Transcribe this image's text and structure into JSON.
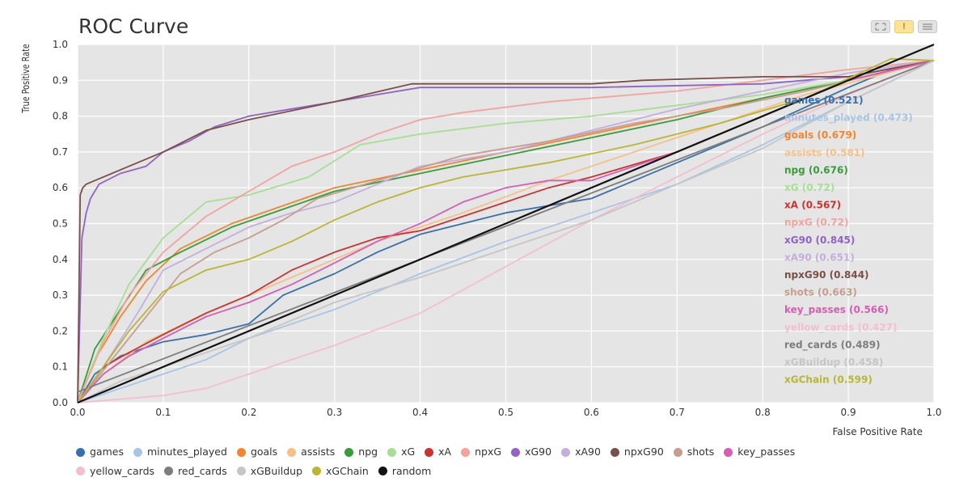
{
  "toolbar": {
    "icons": [
      "expand-icon",
      "warning-icon",
      "menu-icon"
    ]
  },
  "chart_data": {
    "type": "line",
    "title": "ROC Curve",
    "xlabel": "False Positive Rate",
    "ylabel": "True Positive Rate",
    "xlim": [
      0,
      1
    ],
    "ylim": [
      0,
      1
    ],
    "xticks": [
      "0.0",
      "0.1",
      "0.2",
      "0.3",
      "0.4",
      "0.5",
      "0.6",
      "0.7",
      "0.8",
      "0.9",
      "1.0"
    ],
    "yticks": [
      "0.0",
      "0.1",
      "0.2",
      "0.3",
      "0.4",
      "0.5",
      "0.6",
      "0.7",
      "0.8",
      "0.9",
      "1.0"
    ],
    "grid": true,
    "legend_position": "bottom",
    "series": [
      {
        "name": "games",
        "auc_label": "(0.521)",
        "color": "#3a6fae",
        "x": [
          0,
          0.02,
          0.05,
          0.1,
          0.15,
          0.2,
          0.24,
          0.3,
          0.35,
          0.4,
          0.45,
          0.5,
          0.55,
          0.6,
          0.7,
          0.8,
          0.9,
          0.95,
          1
        ],
        "y": [
          0,
          0.08,
          0.13,
          0.17,
          0.19,
          0.22,
          0.3,
          0.36,
          0.42,
          0.47,
          0.5,
          0.53,
          0.55,
          0.57,
          0.67,
          0.77,
          0.88,
          0.93,
          0.955
        ]
      },
      {
        "name": "minutes_played",
        "auc_label": "(0.473)",
        "color": "#a9c4e4",
        "x": [
          0,
          0.05,
          0.1,
          0.15,
          0.2,
          0.3,
          0.4,
          0.5,
          0.6,
          0.7,
          0.8,
          0.9,
          1
        ],
        "y": [
          0,
          0.04,
          0.08,
          0.12,
          0.18,
          0.26,
          0.36,
          0.45,
          0.53,
          0.61,
          0.72,
          0.84,
          0.955
        ]
      },
      {
        "name": "goals",
        "auc_label": "(0.679)",
        "color": "#f0862f",
        "x": [
          0,
          0.02,
          0.05,
          0.08,
          0.12,
          0.18,
          0.3,
          0.4,
          0.5,
          0.6,
          0.7,
          0.8,
          0.9,
          1
        ],
        "y": [
          0,
          0.12,
          0.24,
          0.34,
          0.43,
          0.5,
          0.6,
          0.65,
          0.7,
          0.75,
          0.8,
          0.85,
          0.9,
          0.955
        ]
      },
      {
        "name": "assists",
        "auc_label": "(0.581)",
        "color": "#f5c08a",
        "x": [
          0,
          0.03,
          0.08,
          0.15,
          0.25,
          0.35,
          0.45,
          0.55,
          0.65,
          0.75,
          0.85,
          1
        ],
        "y": [
          0,
          0.08,
          0.17,
          0.25,
          0.35,
          0.45,
          0.53,
          0.62,
          0.7,
          0.78,
          0.86,
          0.955
        ]
      },
      {
        "name": "npg",
        "auc_label": "(0.676)",
        "color": "#3b9b3b",
        "x": [
          0,
          0.02,
          0.05,
          0.08,
          0.12,
          0.18,
          0.3,
          0.4,
          0.5,
          0.6,
          0.7,
          0.8,
          0.9,
          1
        ],
        "y": [
          0,
          0.15,
          0.26,
          0.37,
          0.42,
          0.49,
          0.59,
          0.64,
          0.69,
          0.74,
          0.79,
          0.85,
          0.9,
          0.955
        ]
      },
      {
        "name": "xG",
        "auc_label": "(0.72)",
        "color": "#a6df93",
        "x": [
          0,
          0.03,
          0.06,
          0.1,
          0.15,
          0.2,
          0.27,
          0.33,
          0.4,
          0.5,
          0.6,
          0.7,
          0.8,
          0.9,
          1
        ],
        "y": [
          0,
          0.18,
          0.33,
          0.46,
          0.56,
          0.58,
          0.63,
          0.72,
          0.75,
          0.78,
          0.8,
          0.83,
          0.86,
          0.9,
          0.955
        ]
      },
      {
        "name": "xA",
        "auc_label": "(0.567)",
        "color": "#c8342f",
        "x": [
          0,
          0.03,
          0.06,
          0.1,
          0.15,
          0.2,
          0.25,
          0.3,
          0.35,
          0.4,
          0.45,
          0.5,
          0.55,
          0.6,
          0.7,
          0.8,
          0.9,
          1
        ],
        "y": [
          0,
          0.1,
          0.14,
          0.19,
          0.25,
          0.3,
          0.37,
          0.42,
          0.46,
          0.48,
          0.52,
          0.56,
          0.6,
          0.63,
          0.7,
          0.8,
          0.9,
          0.955
        ]
      },
      {
        "name": "npxG",
        "auc_label": "(0.72)",
        "color": "#f2a39e",
        "x": [
          0,
          0.03,
          0.06,
          0.1,
          0.15,
          0.2,
          0.25,
          0.3,
          0.35,
          0.4,
          0.45,
          0.55,
          0.7,
          0.8,
          0.9,
          1
        ],
        "y": [
          0,
          0.17,
          0.3,
          0.42,
          0.52,
          0.59,
          0.66,
          0.7,
          0.75,
          0.79,
          0.81,
          0.84,
          0.87,
          0.9,
          0.93,
          0.955
        ]
      },
      {
        "name": "xG90",
        "auc_label": "(0.845)",
        "color": "#8f64c2",
        "x": [
          0,
          0.005,
          0.01,
          0.015,
          0.025,
          0.05,
          0.08,
          0.1,
          0.13,
          0.16,
          0.2,
          0.25,
          0.3,
          0.35,
          0.4,
          0.6,
          0.8,
          0.9,
          1
        ],
        "y": [
          0,
          0.46,
          0.53,
          0.57,
          0.61,
          0.64,
          0.66,
          0.7,
          0.73,
          0.77,
          0.8,
          0.82,
          0.84,
          0.86,
          0.88,
          0.88,
          0.89,
          0.91,
          0.955
        ]
      },
      {
        "name": "xA90",
        "auc_label": "(0.651)",
        "color": "#c3aedc",
        "x": [
          0,
          0.03,
          0.07,
          0.1,
          0.15,
          0.2,
          0.25,
          0.3,
          0.35,
          0.4,
          0.5,
          0.6,
          0.7,
          0.8,
          0.9,
          1
        ],
        "y": [
          0,
          0.1,
          0.25,
          0.37,
          0.43,
          0.49,
          0.53,
          0.56,
          0.61,
          0.66,
          0.7,
          0.76,
          0.82,
          0.87,
          0.92,
          0.955
        ]
      },
      {
        "name": "npxG90",
        "auc_label": "(0.844)",
        "color": "#7b4f49",
        "x": [
          0,
          0.003,
          0.006,
          0.01,
          0.02,
          0.05,
          0.1,
          0.15,
          0.2,
          0.3,
          0.39,
          0.6,
          0.66,
          0.8,
          0.9,
          1
        ],
        "y": [
          0,
          0.58,
          0.6,
          0.61,
          0.62,
          0.65,
          0.7,
          0.76,
          0.79,
          0.84,
          0.89,
          0.89,
          0.9,
          0.91,
          0.91,
          0.955
        ]
      },
      {
        "name": "shots",
        "auc_label": "(0.663)",
        "color": "#c79d90",
        "x": [
          0,
          0.04,
          0.08,
          0.12,
          0.16,
          0.2,
          0.24,
          0.28,
          0.35,
          0.45,
          0.55,
          0.65,
          0.75,
          0.85,
          1
        ],
        "y": [
          0,
          0.12,
          0.24,
          0.36,
          0.42,
          0.46,
          0.51,
          0.57,
          0.62,
          0.69,
          0.73,
          0.78,
          0.82,
          0.87,
          0.955
        ]
      },
      {
        "name": "key_passes",
        "auc_label": "(0.566)",
        "color": "#d45fb4",
        "x": [
          0,
          0.03,
          0.06,
          0.1,
          0.15,
          0.2,
          0.25,
          0.3,
          0.35,
          0.4,
          0.45,
          0.5,
          0.55,
          0.6,
          0.7,
          0.8,
          0.9,
          1
        ],
        "y": [
          0,
          0.08,
          0.13,
          0.18,
          0.24,
          0.28,
          0.33,
          0.39,
          0.45,
          0.5,
          0.56,
          0.6,
          0.62,
          0.62,
          0.7,
          0.8,
          0.9,
          0.955
        ]
      },
      {
        "name": "yellow_cards",
        "auc_label": "(0.427)",
        "color": "#f3bfd0",
        "x": [
          0,
          0.05,
          0.1,
          0.15,
          0.2,
          0.3,
          0.4,
          0.5,
          0.6,
          0.7,
          0.8,
          0.9,
          1
        ],
        "y": [
          0,
          0.01,
          0.02,
          0.04,
          0.08,
          0.16,
          0.25,
          0.38,
          0.51,
          0.63,
          0.75,
          0.86,
          0.955
        ]
      },
      {
        "name": "red_cards",
        "auc_label": "(0.489)",
        "color": "#7d7d7d",
        "x": [
          0,
          1
        ],
        "y": [
          0.03,
          0.955
        ]
      },
      {
        "name": "xGBuildup",
        "auc_label": "(0.458)",
        "color": "#c6c6c6",
        "x": [
          0,
          0.05,
          0.1,
          0.15,
          0.2,
          0.3,
          0.4,
          0.5,
          0.6,
          0.7,
          0.8,
          0.9,
          1
        ],
        "y": [
          0,
          0.06,
          0.1,
          0.14,
          0.18,
          0.28,
          0.35,
          0.43,
          0.51,
          0.61,
          0.71,
          0.84,
          0.955
        ]
      },
      {
        "name": "xGChain",
        "auc_label": "(0.599)",
        "color": "#b9b537",
        "x": [
          0,
          0.03,
          0.06,
          0.1,
          0.15,
          0.2,
          0.25,
          0.3,
          0.35,
          0.4,
          0.45,
          0.55,
          0.65,
          0.75,
          0.85,
          0.95,
          1
        ],
        "y": [
          0,
          0.1,
          0.2,
          0.31,
          0.37,
          0.4,
          0.45,
          0.51,
          0.56,
          0.6,
          0.63,
          0.67,
          0.72,
          0.78,
          0.85,
          0.96,
          0.955
        ]
      },
      {
        "name": "random",
        "auc_label": "",
        "color": "#111111",
        "x": [
          0,
          1
        ],
        "y": [
          0,
          1
        ]
      }
    ]
  }
}
